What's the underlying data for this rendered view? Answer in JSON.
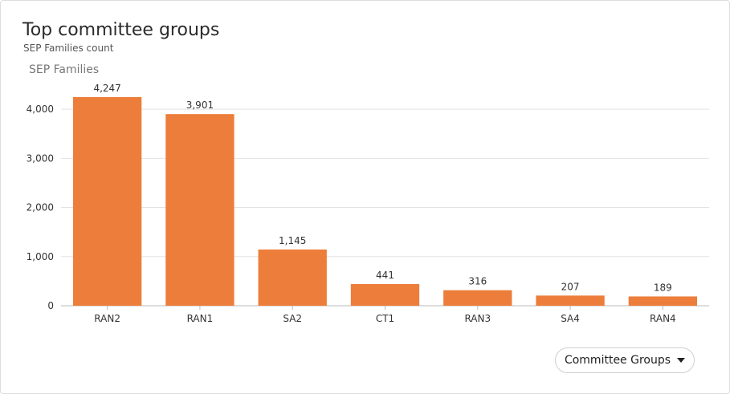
{
  "card": {
    "title": "Top committee groups",
    "subtitle": "SEP Families count"
  },
  "controls": {
    "dropdown_label": "Committee Groups",
    "dropdown_icon": "caret-down-icon"
  },
  "colors": {
    "bar": "#ed7d3a",
    "grid": "#e3e3e3",
    "axis": "#bbbbbb",
    "text": "#333333",
    "ylabel": "#777777"
  },
  "chart_data": {
    "type": "bar",
    "ylabel": "SEP Families",
    "xlabel": "",
    "categories": [
      "RAN2",
      "RAN1",
      "SA2",
      "CT1",
      "RAN3",
      "SA4",
      "RAN4"
    ],
    "values": [
      4247,
      3901,
      1145,
      441,
      316,
      207,
      189
    ],
    "value_labels": [
      "4,247",
      "3,901",
      "1,145",
      "441",
      "316",
      "207",
      "189"
    ],
    "y_ticks": [
      0,
      1000,
      2000,
      3000,
      4000
    ],
    "y_tick_labels": [
      "0",
      "1,000",
      "2,000",
      "3,000",
      "4,000"
    ],
    "ylim": [
      0,
      4247
    ],
    "grid": true,
    "legend": "none"
  }
}
